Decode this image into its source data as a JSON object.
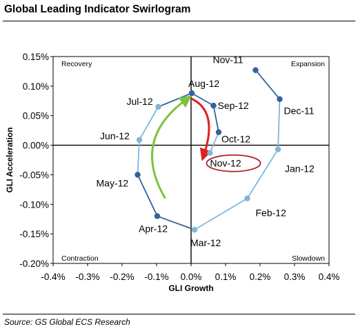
{
  "title": "Global Leading Indicator Swirlogram",
  "source": "Source: GS Global ECS Research",
  "chart_data": {
    "type": "line",
    "xlabel": "GLI Growth",
    "ylabel": "GLI Acceleration",
    "xlim": [
      -0.004,
      0.004
    ],
    "ylim": [
      -0.002,
      0.0015
    ],
    "x_ticks": [
      {
        "v": -0.004,
        "label": "-0.4%"
      },
      {
        "v": -0.003,
        "label": "-0.3%"
      },
      {
        "v": -0.002,
        "label": "-0.2%"
      },
      {
        "v": -0.001,
        "label": "-0.1%"
      },
      {
        "v": 0.0,
        "label": "0.0%"
      },
      {
        "v": 0.001,
        "label": "0.1%"
      },
      {
        "v": 0.002,
        "label": "0.2%"
      },
      {
        "v": 0.003,
        "label": "0.3%"
      },
      {
        "v": 0.004,
        "label": "0.4%"
      }
    ],
    "y_ticks": [
      {
        "v": 0.0015,
        "label": "0.15%"
      },
      {
        "v": 0.001,
        "label": "0.10%"
      },
      {
        "v": 0.0005,
        "label": "0.05%"
      },
      {
        "v": 0.0,
        "label": "0.00%"
      },
      {
        "v": -0.0005,
        "label": "-0.05%"
      },
      {
        "v": -0.001,
        "label": "-0.10%"
      },
      {
        "v": -0.0015,
        "label": "-0.15%"
      },
      {
        "v": -0.002,
        "label": "-0.20%"
      }
    ],
    "quadrants": {
      "top_left": "Recovery",
      "top_right": "Expansion",
      "bottom_left": "Contraction",
      "bottom_right": "Slowdown"
    },
    "points": [
      {
        "label": "Nov-11",
        "x": 0.00187,
        "y": 0.00127,
        "color": "#33629b"
      },
      {
        "label": "Dec-11",
        "x": 0.00257,
        "y": 0.00078,
        "color": "#33629b"
      },
      {
        "label": "Jan-12",
        "x": 0.00252,
        "y": -7e-05,
        "color": "#7fb6dc"
      },
      {
        "label": "Feb-12",
        "x": 0.00163,
        "y": -0.0009,
        "color": "#7fb6dc"
      },
      {
        "label": "Mar-12",
        "x": 0.0001,
        "y": -0.00143,
        "color": "#7fb6dc"
      },
      {
        "label": "Apr-12",
        "x": -0.00098,
        "y": -0.0012,
        "color": "#33629b"
      },
      {
        "label": "May-12",
        "x": -0.00155,
        "y": -0.0005,
        "color": "#33629b"
      },
      {
        "label": "Jun-12",
        "x": -0.0015,
        "y": 9e-05,
        "color": "#7fb6dc"
      },
      {
        "label": "Jul-12",
        "x": -0.00095,
        "y": 0.00065,
        "color": "#7fb6dc"
      },
      {
        "label": "Aug-12",
        "x": 2e-05,
        "y": 0.00088,
        "color": "#33629b"
      },
      {
        "label": "Sep-12",
        "x": 0.00065,
        "y": 0.00067,
        "color": "#33629b"
      },
      {
        "label": "Oct-12",
        "x": 0.0008,
        "y": 0.00022,
        "color": "#33629b"
      },
      {
        "label": "Nov-12",
        "x": 0.00055,
        "y": -0.00013,
        "color": "#7fb6dc"
      }
    ],
    "highlight_label": "Nov-12",
    "colors": {
      "line_dark": "#33629b",
      "line_light": "#7fb6dc",
      "arrow_green": "#7dc242",
      "arrow_red": "#e02020",
      "highlight_outline": "#b01e23"
    }
  }
}
